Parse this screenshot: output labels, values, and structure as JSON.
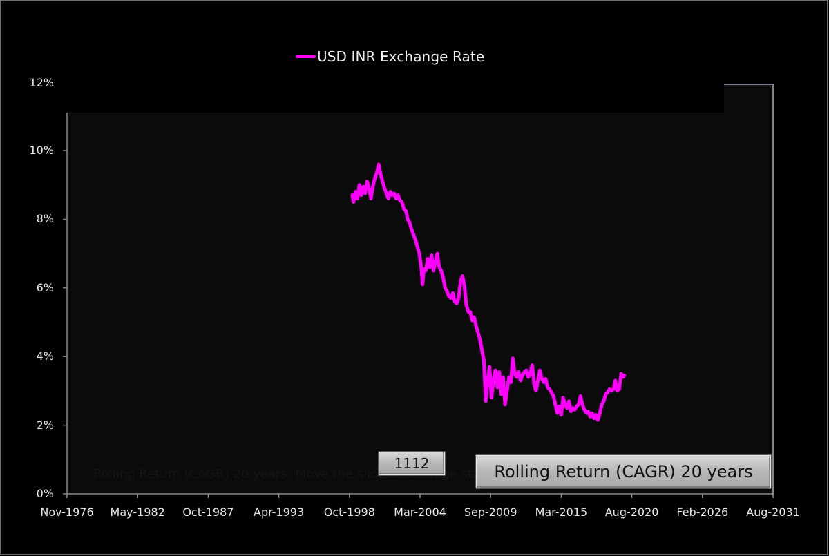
{
  "chart_data": {
    "type": "line",
    "title": "Rolling Return (CAGR) 20 years",
    "xlabel": "",
    "ylabel": "",
    "legend": [
      {
        "name": "USD INR Exchange Rate",
        "color": "#ff00ff"
      }
    ],
    "legend_position": "top",
    "grid": false,
    "ylim": [
      0,
      12
    ],
    "y_ticks": [
      "0%",
      "2%",
      "4%",
      "6%",
      "8%",
      "10%",
      "12%"
    ],
    "x_ticks": [
      "Nov-1976",
      "May-1982",
      "Oct-1987",
      "Apr-1993",
      "Oct-1998",
      "Mar-2004",
      "Sep-2009",
      "Mar-2015",
      "Aug-2020",
      "Feb-2026",
      "Aug-2031"
    ],
    "xlim": [
      "Nov-1976",
      "Aug-2031"
    ],
    "series": [
      {
        "name": "USD INR Exchange Rate",
        "color": "#ff00ff",
        "points": [
          [
            1998.95,
            8.7
          ],
          [
            1999.05,
            8.5
          ],
          [
            1999.2,
            8.8
          ],
          [
            1999.35,
            8.6
          ],
          [
            1999.5,
            9.0
          ],
          [
            1999.65,
            8.7
          ],
          [
            1999.8,
            8.95
          ],
          [
            1999.95,
            8.75
          ],
          [
            2000.1,
            9.1
          ],
          [
            2000.25,
            8.9
          ],
          [
            2000.4,
            8.6
          ],
          [
            2000.55,
            8.95
          ],
          [
            2000.7,
            9.2
          ],
          [
            2000.85,
            9.35
          ],
          [
            2001.0,
            9.6
          ],
          [
            2001.15,
            9.3
          ],
          [
            2001.3,
            9.1
          ],
          [
            2001.45,
            8.9
          ],
          [
            2001.6,
            8.75
          ],
          [
            2001.75,
            8.6
          ],
          [
            2001.9,
            8.8
          ],
          [
            2002.05,
            8.7
          ],
          [
            2002.2,
            8.75
          ],
          [
            2002.35,
            8.6
          ],
          [
            2002.5,
            8.7
          ],
          [
            2002.65,
            8.55
          ],
          [
            2002.8,
            8.5
          ],
          [
            2002.95,
            8.3
          ],
          [
            2003.1,
            8.25
          ],
          [
            2003.25,
            8.0
          ],
          [
            2003.4,
            7.9
          ],
          [
            2003.55,
            7.7
          ],
          [
            2003.7,
            7.55
          ],
          [
            2003.85,
            7.4
          ],
          [
            2004.0,
            7.2
          ],
          [
            2004.15,
            7.0
          ],
          [
            2004.3,
            6.6
          ],
          [
            2004.4,
            6.1
          ],
          [
            2004.5,
            6.55
          ],
          [
            2004.65,
            6.5
          ],
          [
            2004.8,
            6.85
          ],
          [
            2004.95,
            6.6
          ],
          [
            2005.1,
            6.95
          ],
          [
            2005.25,
            6.5
          ],
          [
            2005.4,
            6.75
          ],
          [
            2005.55,
            7.0
          ],
          [
            2005.7,
            6.6
          ],
          [
            2005.85,
            6.5
          ],
          [
            2006.0,
            6.3
          ],
          [
            2006.15,
            6.0
          ],
          [
            2006.3,
            5.9
          ],
          [
            2006.45,
            5.75
          ],
          [
            2006.6,
            5.7
          ],
          [
            2006.75,
            5.85
          ],
          [
            2006.9,
            5.6
          ],
          [
            2007.05,
            5.55
          ],
          [
            2007.2,
            5.7
          ],
          [
            2007.35,
            6.2
          ],
          [
            2007.5,
            6.35
          ],
          [
            2007.65,
            6.05
          ],
          [
            2007.8,
            5.5
          ],
          [
            2007.95,
            5.3
          ],
          [
            2008.1,
            5.3
          ],
          [
            2008.25,
            5.05
          ],
          [
            2008.4,
            5.15
          ],
          [
            2008.55,
            4.9
          ],
          [
            2008.7,
            4.7
          ],
          [
            2008.85,
            4.5
          ],
          [
            2009.0,
            4.2
          ],
          [
            2009.15,
            3.9
          ],
          [
            2009.3,
            2.7
          ],
          [
            2009.45,
            3.3
          ],
          [
            2009.6,
            3.7
          ],
          [
            2009.75,
            2.8
          ],
          [
            2009.9,
            3.3
          ],
          [
            2010.05,
            3.6
          ],
          [
            2010.2,
            3.1
          ],
          [
            2010.35,
            3.55
          ],
          [
            2010.5,
            2.9
          ],
          [
            2010.65,
            3.4
          ],
          [
            2010.8,
            2.6
          ],
          [
            2010.95,
            3.0
          ],
          [
            2011.1,
            3.4
          ],
          [
            2011.25,
            3.25
          ],
          [
            2011.4,
            3.95
          ],
          [
            2011.55,
            3.5
          ],
          [
            2011.7,
            3.4
          ],
          [
            2011.85,
            3.55
          ],
          [
            2012.0,
            3.3
          ],
          [
            2012.15,
            3.45
          ],
          [
            2012.3,
            3.55
          ],
          [
            2012.45,
            3.6
          ],
          [
            2012.6,
            3.4
          ],
          [
            2012.75,
            3.5
          ],
          [
            2012.9,
            3.75
          ],
          [
            2013.05,
            3.2
          ],
          [
            2013.2,
            3.0
          ],
          [
            2013.35,
            3.3
          ],
          [
            2013.5,
            3.6
          ],
          [
            2013.65,
            3.35
          ],
          [
            2013.8,
            3.25
          ],
          [
            2013.95,
            3.35
          ],
          [
            2014.1,
            3.1
          ],
          [
            2014.25,
            3.05
          ],
          [
            2014.4,
            2.95
          ],
          [
            2014.55,
            2.85
          ],
          [
            2014.7,
            2.6
          ],
          [
            2014.85,
            2.35
          ],
          [
            2015.0,
            2.55
          ],
          [
            2015.15,
            2.3
          ],
          [
            2015.3,
            2.8
          ],
          [
            2015.45,
            2.6
          ],
          [
            2015.6,
            2.5
          ],
          [
            2015.75,
            2.7
          ],
          [
            2015.9,
            2.4
          ],
          [
            2016.05,
            2.5
          ],
          [
            2016.2,
            2.45
          ],
          [
            2016.35,
            2.55
          ],
          [
            2016.5,
            2.6
          ],
          [
            2016.65,
            2.85
          ],
          [
            2016.8,
            2.6
          ],
          [
            2016.95,
            2.45
          ],
          [
            2017.1,
            2.35
          ],
          [
            2017.25,
            2.4
          ],
          [
            2017.4,
            2.25
          ],
          [
            2017.55,
            2.35
          ],
          [
            2017.7,
            2.2
          ],
          [
            2017.85,
            2.3
          ],
          [
            2018.0,
            2.15
          ],
          [
            2018.15,
            2.35
          ],
          [
            2018.3,
            2.6
          ],
          [
            2018.45,
            2.7
          ],
          [
            2018.6,
            2.9
          ],
          [
            2018.75,
            2.95
          ],
          [
            2018.9,
            3.05
          ],
          [
            2019.05,
            3.0
          ],
          [
            2019.2,
            3.05
          ],
          [
            2019.35,
            3.3
          ],
          [
            2019.5,
            3.0
          ],
          [
            2019.65,
            3.05
          ],
          [
            2019.8,
            3.5
          ],
          [
            2019.95,
            3.4
          ],
          [
            2020.05,
            3.45
          ]
        ]
      }
    ]
  },
  "legend": {
    "label": "USD INR Exchange Rate"
  },
  "controls": {
    "counter_value": "1112",
    "title_button": "Rolling Return (CAGR) 20 years"
  },
  "ghost_text": "Rolling Return (CAGR) 20 years: Move the slider to change start year"
}
